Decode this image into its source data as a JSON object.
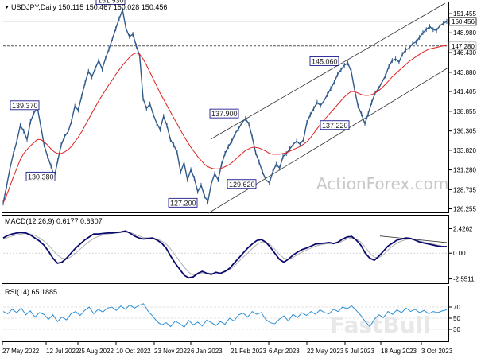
{
  "chart_data": [
    {
      "type": "line",
      "title": "USDJPY,Daily",
      "ohlc_header": "150.115 150.467 150.028 150.456",
      "y_ticks": [
        126.255,
        128.735,
        131.28,
        133.82,
        136.305,
        138.855,
        141.405,
        143.88,
        146.43,
        148.98,
        151.455
      ],
      "ylim": [
        126.0,
        152.6
      ],
      "current_price": "150.456",
      "current_price_value": 150.456,
      "resistance_label": "147.280",
      "resistance_value": 147.28,
      "x_labels": [
        "27 May 2022",
        "12 Jul 2022",
        "25 Aug 2022",
        "10 Oct 2022",
        "23 Nov 2022",
        "6 Jan 2023",
        "21 Feb 2023",
        "6 Apr 2023",
        "22 May 2023",
        "5 Jul 2023",
        "18 Aug 2023",
        "3 Oct 2023"
      ],
      "price_annotations": [
        {
          "label": "151.930",
          "value": 151.93
        },
        {
          "label": "139.370",
          "value": 139.37
        },
        {
          "label": "130.380",
          "value": 130.38
        },
        {
          "label": "127.200",
          "value": 127.2
        },
        {
          "label": "137.900",
          "value": 137.9
        },
        {
          "label": "129.620",
          "value": 129.62
        },
        {
          "label": "145.060",
          "value": 145.06
        },
        {
          "label": "137.220",
          "value": 137.22
        }
      ],
      "series": [
        {
          "values": [
            127.0,
            129.2,
            131.5,
            133.4,
            135.0,
            137.0,
            136.3,
            135.2,
            137.5,
            138.6,
            139.37,
            137.0,
            134.5,
            133.0,
            131.8,
            130.38,
            132.5,
            134.5,
            135.6,
            136.2,
            137.5,
            139.5,
            139.0,
            140.8,
            142.5,
            144.0,
            143.3,
            144.4,
            145.4,
            144.3,
            145.7,
            146.9,
            148.2,
            149.5,
            150.8,
            151.93,
            149.5,
            148.5,
            148.8,
            147.3,
            146.0,
            140.5,
            139.2,
            139.8,
            138.4,
            137.3,
            136.5,
            138.2,
            137.0,
            135.2,
            134.5,
            133.5,
            131.0,
            132.2,
            130.0,
            131.3,
            130.2,
            128.5,
            129.3,
            127.9,
            127.2,
            129.5,
            130.8,
            130.0,
            132.0,
            133.4,
            134.3,
            135.0,
            136.0,
            136.6,
            137.4,
            137.9,
            137.2,
            135.5,
            133.5,
            132.3,
            131.0,
            130.0,
            129.62,
            131.0,
            132.0,
            131.5,
            133.0,
            133.4,
            134.0,
            134.6,
            135.0,
            134.6,
            135.2,
            137.4,
            138.4,
            139.2,
            140.0,
            139.6,
            140.2,
            141.0,
            141.8,
            142.6,
            143.6,
            144.2,
            144.8,
            145.06,
            144.0,
            141.6,
            139.5,
            138.5,
            137.22,
            138.6,
            140.0,
            141.2,
            141.8,
            142.6,
            143.4,
            144.6,
            145.4,
            145.6,
            145.2,
            146.2,
            146.8,
            147.0,
            147.6,
            147.8,
            148.4,
            149.0,
            149.4,
            149.8,
            149.4,
            149.3,
            149.9,
            150.2,
            150.456
          ]
        },
        {
          "values": [
            127.0,
            128.0,
            129.2,
            130.4,
            131.5,
            132.6,
            133.4,
            133.9,
            134.4,
            134.8,
            135.2,
            135.2,
            134.9,
            134.5,
            134.0,
            133.6,
            133.4,
            133.4,
            133.6,
            133.9,
            134.3,
            134.9,
            135.5,
            136.2,
            137.0,
            137.8,
            138.6,
            139.4,
            140.2,
            140.9,
            141.6,
            142.3,
            142.9,
            143.6,
            144.2,
            144.8,
            145.3,
            145.8,
            146.2,
            146.4,
            146.2,
            145.6,
            144.8,
            143.9,
            143.0,
            142.1,
            141.2,
            140.4,
            139.6,
            138.8,
            138.0,
            137.2,
            136.4,
            135.6,
            134.9,
            134.2,
            133.6,
            133.0,
            132.5,
            132.0,
            131.7,
            131.5,
            131.4,
            131.4,
            131.5,
            131.7,
            131.9,
            132.2,
            132.6,
            133.0,
            133.4,
            133.8,
            134.0,
            134.2,
            134.2,
            134.1,
            133.9,
            133.7,
            133.4,
            133.3,
            133.3,
            133.3,
            133.4,
            133.5,
            133.7,
            133.9,
            134.1,
            134.3,
            134.6,
            134.9,
            135.4,
            136.0,
            136.6,
            137.2,
            137.7,
            138.2,
            138.7,
            139.2,
            139.7,
            140.2,
            140.7,
            141.1,
            141.4,
            141.4,
            141.2,
            141.0,
            140.9,
            140.9,
            141.0,
            141.2,
            141.5,
            141.9,
            142.3,
            142.8,
            143.3,
            143.7,
            144.1,
            144.5,
            144.9,
            145.3,
            145.6,
            145.9,
            146.2,
            146.5,
            146.7,
            146.9,
            147.0,
            147.1,
            147.2,
            147.3,
            147.35
          ]
        }
      ]
    },
    {
      "type": "line",
      "title": "MACD(12,26,9) 0.6177 0.6307",
      "y_ticks": [
        "2.4262",
        "0.00",
        "-2.5511"
      ],
      "ylim": [
        -2.9,
        2.7
      ],
      "series": [
        {
          "values": [
            1.5,
            1.75,
            1.9,
            2.0,
            2.05,
            2.0,
            1.8,
            1.5,
            1.2,
            0.8,
            0.2,
            -0.5,
            -1.0,
            -0.9,
            -0.5,
            0.0,
            0.5,
            0.9,
            1.3,
            1.6,
            1.9,
            1.9,
            1.95,
            2.0,
            2.0,
            2.05,
            2.1,
            2.2,
            2.0,
            1.7,
            1.5,
            1.4,
            1.45,
            1.5,
            1.3,
            1.0,
            0.5,
            -0.3,
            -1.0,
            -1.6,
            -2.2,
            -2.45,
            -2.35,
            -2.0,
            -1.8,
            -2.0,
            -2.1,
            -1.9,
            -2.0,
            -1.8,
            -1.5,
            -1.0,
            -0.5,
            0.0,
            0.5,
            0.9,
            1.25,
            1.35,
            1.1,
            0.6,
            0.0,
            -0.6,
            -0.9,
            -0.6,
            -0.2,
            0.1,
            0.35,
            0.5,
            0.7,
            0.9,
            0.95,
            1.0,
            1.05,
            0.95,
            1.1,
            1.4,
            1.6,
            1.65,
            1.3,
            0.8,
            0.0,
            -0.5,
            -0.7,
            -0.3,
            0.2,
            0.7,
            1.0,
            1.3,
            1.4,
            1.5,
            1.45,
            1.3,
            1.1,
            1.0,
            0.9,
            0.8,
            0.7,
            0.65,
            0.65
          ]
        },
        {
          "values": [
            1.4,
            1.55,
            1.7,
            1.8,
            1.9,
            1.95,
            1.9,
            1.75,
            1.5,
            1.2,
            0.8,
            0.3,
            -0.2,
            -0.5,
            -0.55,
            -0.35,
            0.0,
            0.4,
            0.8,
            1.15,
            1.45,
            1.65,
            1.8,
            1.9,
            1.95,
            2.0,
            2.05,
            2.1,
            2.05,
            1.9,
            1.7,
            1.55,
            1.5,
            1.5,
            1.4,
            1.2,
            0.9,
            0.4,
            -0.2,
            -0.8,
            -1.4,
            -1.9,
            -2.15,
            -2.1,
            -1.95,
            -1.95,
            -2.0,
            -1.95,
            -1.95,
            -1.85,
            -1.65,
            -1.3,
            -0.85,
            -0.4,
            0.0,
            0.45,
            0.85,
            1.1,
            1.1,
            0.85,
            0.4,
            -0.1,
            -0.5,
            -0.6,
            -0.45,
            -0.15,
            0.1,
            0.3,
            0.5,
            0.7,
            0.8,
            0.9,
            0.95,
            0.95,
            1.0,
            1.2,
            1.4,
            1.5,
            1.4,
            1.1,
            0.6,
            0.0,
            -0.4,
            -0.45,
            -0.15,
            0.3,
            0.7,
            1.0,
            1.2,
            1.35,
            1.4,
            1.35,
            1.2,
            1.1,
            1.0,
            0.9,
            0.8,
            0.7,
            0.65
          ]
        }
      ]
    },
    {
      "type": "line",
      "title": "RSI(14) 65.1885",
      "y_ticks": [
        "70",
        "50",
        "30"
      ],
      "ylim": [
        10,
        90
      ],
      "series": [
        {
          "values": [
            62,
            58,
            66,
            60,
            68,
            56,
            63,
            52,
            60,
            57,
            48,
            56,
            44,
            52,
            47,
            58,
            62,
            55,
            64,
            70,
            58,
            66,
            61,
            68,
            70,
            64,
            72,
            66,
            74,
            68,
            73,
            76,
            63,
            54,
            44,
            38,
            42,
            35,
            45,
            40,
            34,
            46,
            38,
            43,
            36,
            47,
            42,
            37,
            44,
            39,
            50,
            45,
            56,
            59,
            52,
            62,
            57,
            60,
            48,
            42,
            40,
            48,
            54,
            45,
            57,
            51,
            60,
            55,
            62,
            57,
            65,
            60,
            58,
            66,
            62,
            70,
            67,
            72,
            64,
            55,
            44,
            35,
            48,
            56,
            51,
            62,
            57,
            65,
            60,
            68,
            62,
            66,
            60,
            64,
            58,
            62,
            60,
            63,
            65
          ]
        }
      ]
    }
  ],
  "watermark": "ActionForex.com",
  "watermark2": "FastBull"
}
